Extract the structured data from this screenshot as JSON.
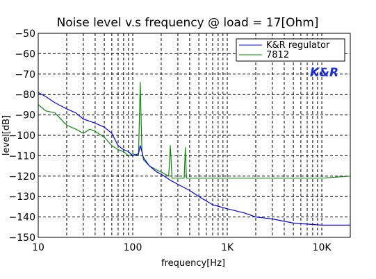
{
  "chart_data": {
    "type": "line",
    "title": "Noise level v.s frequency @ load = 17[Ohm]",
    "xlabel": "frequency[Hz]",
    "ylabel": "level[dB]",
    "x_scale": "log",
    "xlim": [
      10,
      20000
    ],
    "ylim": [
      -150,
      -50
    ],
    "x_ticks": [
      10,
      100,
      1000,
      10000
    ],
    "x_tick_labels": [
      "10",
      "100",
      "1K",
      "10K"
    ],
    "y_ticks": [
      -50,
      -60,
      -70,
      -80,
      -90,
      -100,
      -110,
      -120,
      -130,
      -140,
      -150
    ],
    "y_tick_labels": [
      "−50",
      "−60",
      "−70",
      "−80",
      "−90",
      "−100",
      "−110",
      "−120",
      "−130",
      "−140",
      "−150"
    ],
    "grid": true,
    "legend_position": "top-right",
    "annotation": "K&R",
    "colors": {
      "kr": "#0000ee",
      "v7812": "#0a8a0a",
      "brand": "#1a2fd6"
    },
    "series": [
      {
        "name": "K&R regulator",
        "x": [
          10,
          12,
          15,
          20,
          25,
          30,
          40,
          50,
          60,
          70,
          80,
          90,
          100,
          115,
          120,
          130,
          150,
          180,
          200,
          250,
          300,
          400,
          500,
          700,
          1000,
          1500,
          2000,
          3000,
          5000,
          7000,
          10000,
          15000,
          20000
        ],
        "y": [
          -79,
          -81,
          -84,
          -87,
          -89,
          -92,
          -94,
          -96,
          -99,
          -105,
          -107,
          -108,
          -110,
          -109,
          -105,
          -111,
          -115,
          -118,
          -119,
          -122,
          -124,
          -127,
          -130,
          -134,
          -136,
          -138,
          -140,
          -141,
          -143,
          -143.5,
          -144,
          -144,
          -144
        ]
      },
      {
        "name": "7812",
        "x": [
          10,
          12,
          15,
          20,
          25,
          30,
          35,
          40,
          50,
          60,
          70,
          80,
          90,
          100,
          115,
          120,
          125,
          130,
          150,
          180,
          200,
          240,
          250,
          260,
          300,
          350,
          360,
          370,
          400,
          500,
          1000,
          2000,
          5000,
          10000,
          20000
        ],
        "y": [
          -85,
          -88,
          -89,
          -95,
          -97,
          -99,
          -97,
          -98,
          -101,
          -105,
          -107,
          -108,
          -110,
          -109,
          -110,
          -74,
          -108,
          -112,
          -115,
          -117,
          -118,
          -120,
          -105,
          -121,
          -121,
          -121,
          -106,
          -121,
          -121,
          -121,
          -121,
          -121,
          -121,
          -121,
          -120
        ]
      }
    ]
  }
}
